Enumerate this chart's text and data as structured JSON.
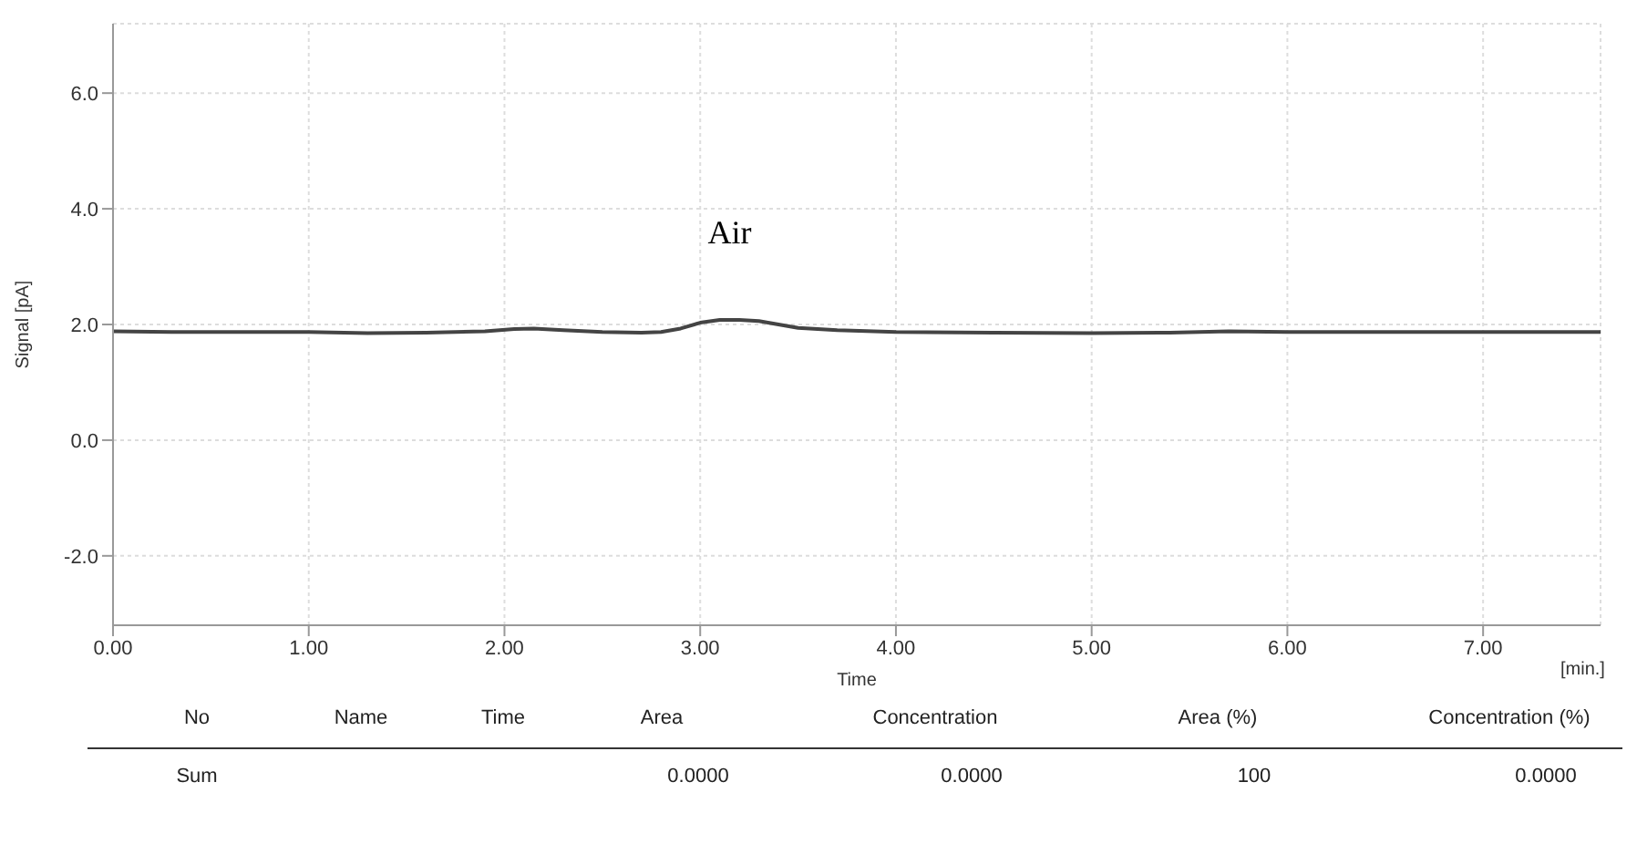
{
  "chart_data": {
    "type": "line",
    "xlabel": "Time",
    "ylabel": "Signal [pA]",
    "x": [
      0,
      0.3,
      0.6,
      1.0,
      1.3,
      1.6,
      1.9,
      2.05,
      2.15,
      2.3,
      2.5,
      2.7,
      2.8,
      2.9,
      3.0,
      3.1,
      3.2,
      3.3,
      3.4,
      3.5,
      3.7,
      4.0,
      4.5,
      5.0,
      5.4,
      5.7,
      6.0,
      6.5,
      7.0,
      7.6
    ],
    "series": [
      {
        "color": "#444444",
        "values": [
          1.88,
          1.87,
          1.87,
          1.87,
          1.85,
          1.86,
          1.88,
          1.92,
          1.93,
          1.9,
          1.87,
          1.86,
          1.87,
          1.93,
          2.03,
          2.08,
          2.08,
          2.06,
          2.0,
          1.94,
          1.9,
          1.87,
          1.86,
          1.85,
          1.86,
          1.88,
          1.87,
          1.87,
          1.87,
          1.87
        ]
      }
    ],
    "xlim": [
      0,
      7.6
    ],
    "xticks": [
      {
        "value": 0,
        "label": "0.00"
      },
      {
        "value": 1,
        "label": "1.00"
      },
      {
        "value": 2,
        "label": "2.00"
      },
      {
        "value": 3,
        "label": "3.00"
      },
      {
        "value": 4,
        "label": "4.00"
      },
      {
        "value": 5,
        "label": "5.00"
      },
      {
        "value": 6,
        "label": "6.00"
      },
      {
        "value": 7,
        "label": "7.00"
      }
    ],
    "ylim": [
      -3.2,
      7.2
    ],
    "yticks": [
      {
        "value": -2,
        "label": "-2.0"
      },
      {
        "value": 0,
        "label": "0.0"
      },
      {
        "value": 2,
        "label": "2.0"
      },
      {
        "value": 4,
        "label": "4.0"
      },
      {
        "value": 6,
        "label": "6.0"
      }
    ],
    "grid": true,
    "marker": "none",
    "line_style": "solid",
    "annotations": [
      {
        "text": "Air",
        "x": 3.15,
        "y": 2.08
      },
      "[min.]",
      "No",
      "Name",
      "Time",
      "Area",
      "Concentration",
      "Area (%)",
      "Concentration (%)",
      "Sum",
      "0.0000",
      "0.0000",
      "100",
      "0.0000"
    ]
  }
}
